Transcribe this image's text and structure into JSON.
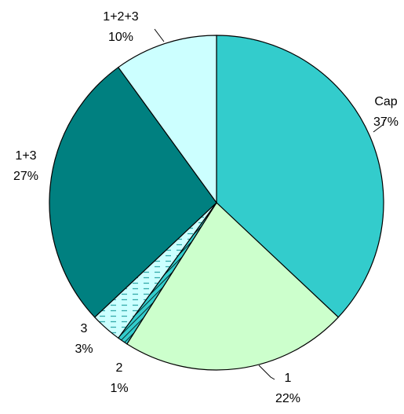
{
  "chart_data": {
    "type": "pie",
    "title": "",
    "start_angle_deg": 0,
    "direction": "clockwise",
    "slices": [
      {
        "name": "Cap",
        "percent_label": "37%",
        "value": 37,
        "color": "#33CCCC",
        "pattern": "none"
      },
      {
        "name": "1",
        "percent_label": "22%",
        "value": 22,
        "color": "#CCFFCC",
        "pattern": "none"
      },
      {
        "name": "2",
        "percent_label": "1%",
        "value": 1,
        "color": "#33CCCC",
        "pattern": "diagonal-stripes"
      },
      {
        "name": "3",
        "percent_label": "3%",
        "value": 3,
        "color": "#CCFFFF",
        "pattern": "dashes"
      },
      {
        "name": "1+3",
        "percent_label": "27%",
        "value": 27,
        "color": "#008080",
        "pattern": "none"
      },
      {
        "name": "1+2+3",
        "percent_label": "10%",
        "value": 10,
        "color": "#CCFFFF",
        "pattern": "none"
      }
    ],
    "legend": "none",
    "data_labels": "outside"
  }
}
